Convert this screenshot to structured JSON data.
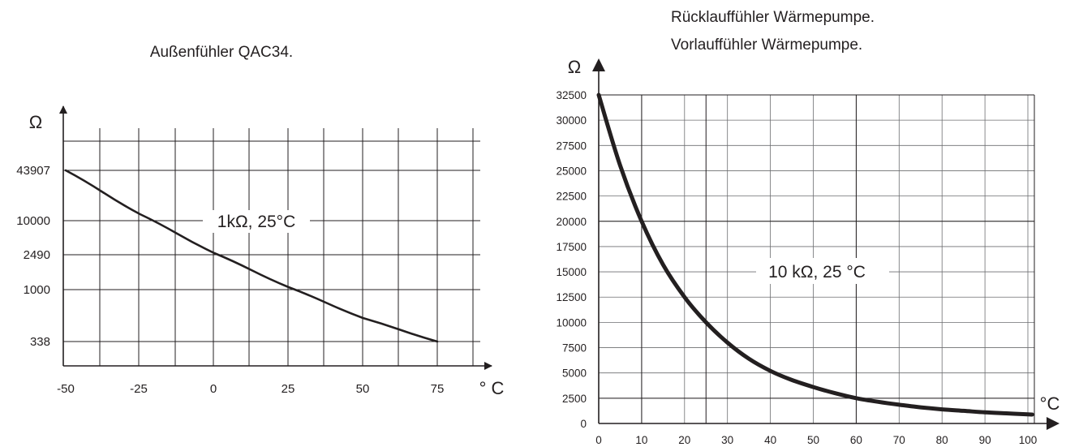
{
  "chart_data": [
    {
      "type": "line",
      "title": "Außenfühler QAC34.",
      "ylabel": "Ω",
      "xlabel": "° C",
      "x_ticks": [
        "-50",
        "-25",
        "0",
        "25",
        "50",
        "75"
      ],
      "y_ticks": [
        "43907",
        "10000",
        "2490",
        "1000",
        "338"
      ],
      "annotation": "1kΩ, 25°C",
      "y_scale": "ordinal",
      "series": [
        {
          "x": [
            -50,
            -25,
            0,
            25,
            50,
            75
          ],
          "y": [
            43907,
            10000,
            2490,
            1000,
            400,
            338
          ]
        }
      ],
      "grid": true
    },
    {
      "type": "line",
      "title_lines": [
        "Rücklauffühler Wärmepumpe.",
        "Vorlauffühler Wärmepumpe."
      ],
      "ylabel": "Ω",
      "xlabel": "°C",
      "x_ticks": [
        "0",
        "10",
        "20",
        "30",
        "40",
        "50",
        "60",
        "70",
        "80",
        "90",
        "100"
      ],
      "y_ticks": [
        "0",
        "2500",
        "5000",
        "7500",
        "10000",
        "12500",
        "15000",
        "17500",
        "20000",
        "22500",
        "25000",
        "27500",
        "30000",
        "32500"
      ],
      "annotation": "10 kΩ, 25 °C",
      "xlim": [
        0,
        101
      ],
      "ylim": [
        0,
        32500
      ],
      "series": [
        {
          "x": [
            0,
            5,
            10,
            15,
            20,
            25,
            30,
            35,
            40,
            45,
            50,
            55,
            60,
            65,
            70,
            75,
            80,
            85,
            90,
            95,
            100,
            101
          ],
          "y": [
            32500,
            25500,
            20000,
            15700,
            12500,
            10000,
            8000,
            6400,
            5200,
            4300,
            3600,
            3000,
            2500,
            2150,
            1850,
            1600,
            1400,
            1250,
            1100,
            1000,
            900,
            880
          ]
        }
      ],
      "grid": true
    }
  ]
}
